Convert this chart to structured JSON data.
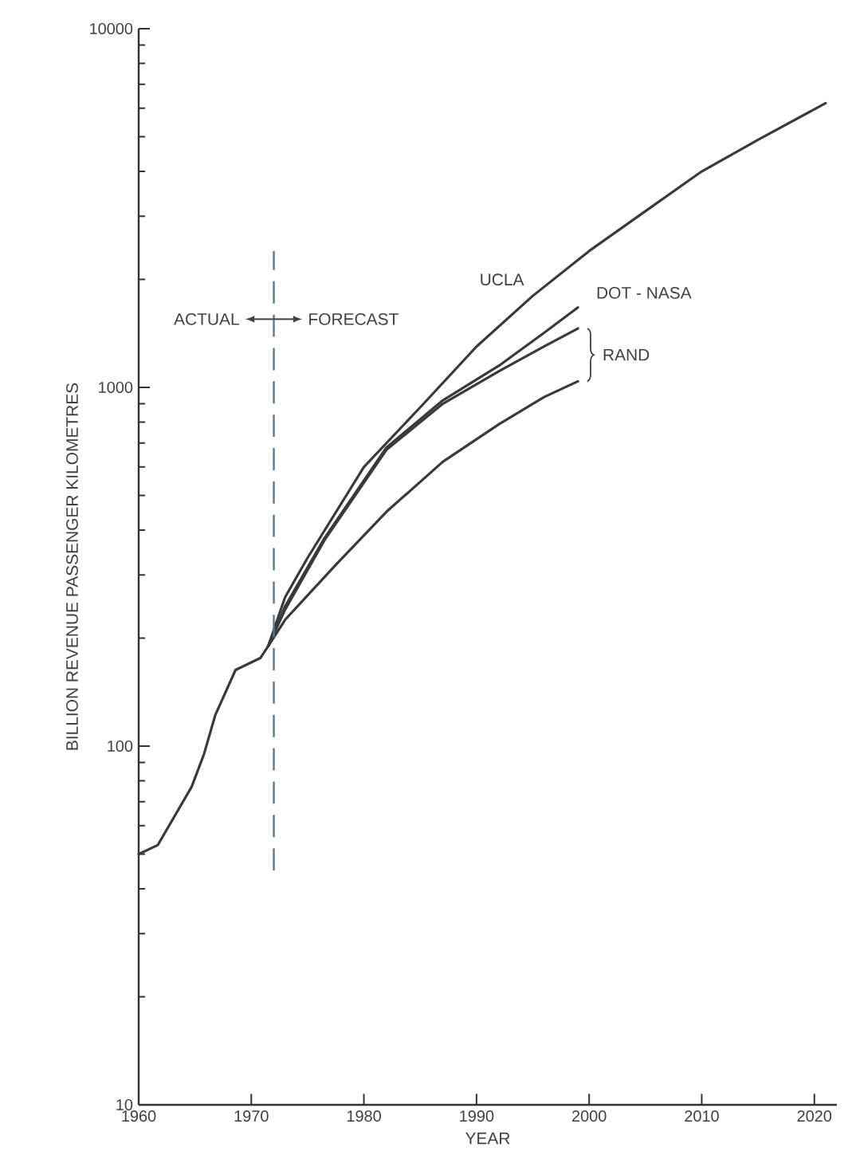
{
  "chart_data": {
    "type": "line",
    "xlabel": "YEAR",
    "ylabel": "BILLION REVENUE PASSENGER KILOMETRES",
    "log": "y",
    "xlim": [
      1960,
      2022
    ],
    "xticks": [
      1960,
      1970,
      1980,
      1990,
      2000,
      2010,
      2020
    ],
    "ylim": [
      10,
      10000
    ],
    "yticks": [
      10,
      100,
      1000,
      10000
    ],
    "series": [
      {
        "name": "UCLA",
        "color": "#3a3a3a",
        "x": [
          1960,
          1961.7,
          1964.7,
          1965.8,
          1966.8,
          1968.6,
          1970.8,
          1971.5,
          1973,
          1975,
          1980,
          1985,
          1990,
          1995,
          2000,
          2005,
          2010,
          2015,
          2021
        ],
        "values": [
          50,
          53,
          77,
          95,
          122,
          163,
          176,
          190,
          260,
          335,
          600,
          880,
          1300,
          1800,
          2400,
          3100,
          4000,
          4900,
          6200
        ]
      },
      {
        "name": "DOT - NASA",
        "color": "#3a3a3a",
        "x": [
          1971.5,
          1973,
          1976.5,
          1982,
          1987,
          1992,
          1996,
          1999
        ],
        "values": [
          190,
          245,
          380,
          680,
          920,
          1150,
          1420,
          1670
        ]
      },
      {
        "name": "RAND",
        "color": "#3a3a3a",
        "x": [
          1971.5,
          1973,
          1976.5,
          1982,
          1987,
          1992,
          1996,
          1999
        ],
        "values": [
          190,
          240,
          375,
          670,
          900,
          1110,
          1300,
          1460
        ]
      },
      {
        "color": "#3a3a3a",
        "x": [
          1971.5,
          1973,
          1977.5,
          1982,
          1987,
          1992,
          1996,
          1999
        ],
        "values": [
          190,
          225,
          320,
          450,
          620,
          790,
          940,
          1040
        ]
      }
    ],
    "ref_lines": [
      {
        "axis": "x",
        "value": 1972,
        "color": "#5b7a8c",
        "line_style": "dashed"
      }
    ],
    "annotations": [
      {
        "text": "ACTUAL",
        "x": 1972,
        "y": 1550
      },
      {
        "text": "FORECAST",
        "x": 1972,
        "y": 1550
      }
    ]
  }
}
